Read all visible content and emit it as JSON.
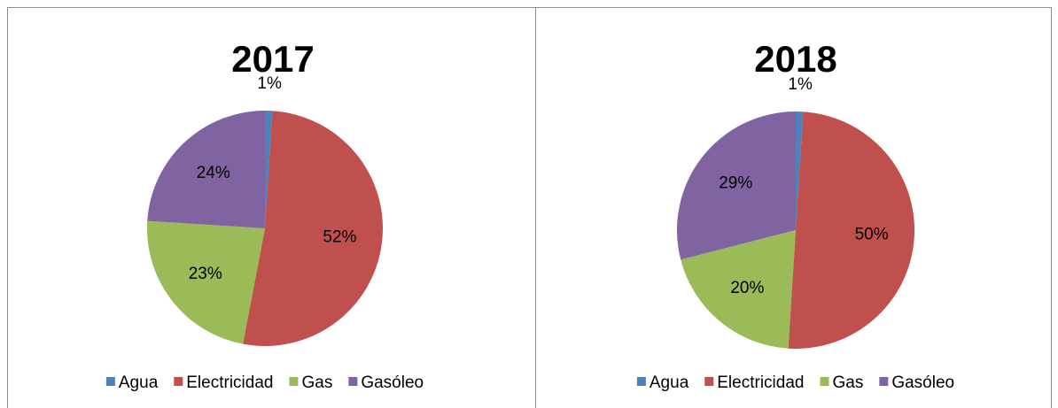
{
  "chart_data": [
    {
      "type": "pie",
      "title": "2017",
      "categories": [
        "Agua",
        "Electricidad",
        "Gas",
        "Gasóleo"
      ],
      "values": [
        1,
        52,
        23,
        24
      ],
      "value_labels": [
        "1%",
        "52%",
        "23%",
        "24%"
      ],
      "colors": [
        "#4f81bd",
        "#c0504d",
        "#9bbb59",
        "#8064a2"
      ],
      "legend": "bottom"
    },
    {
      "type": "pie",
      "title": "2018",
      "categories": [
        "Agua",
        "Electricidad",
        "Gas",
        "Gasóleo"
      ],
      "values": [
        1,
        50,
        20,
        29
      ],
      "value_labels": [
        "1%",
        "50%",
        "20%",
        "29%"
      ],
      "colors": [
        "#4f81bd",
        "#c0504d",
        "#9bbb59",
        "#8064a2"
      ],
      "legend": "bottom"
    }
  ]
}
